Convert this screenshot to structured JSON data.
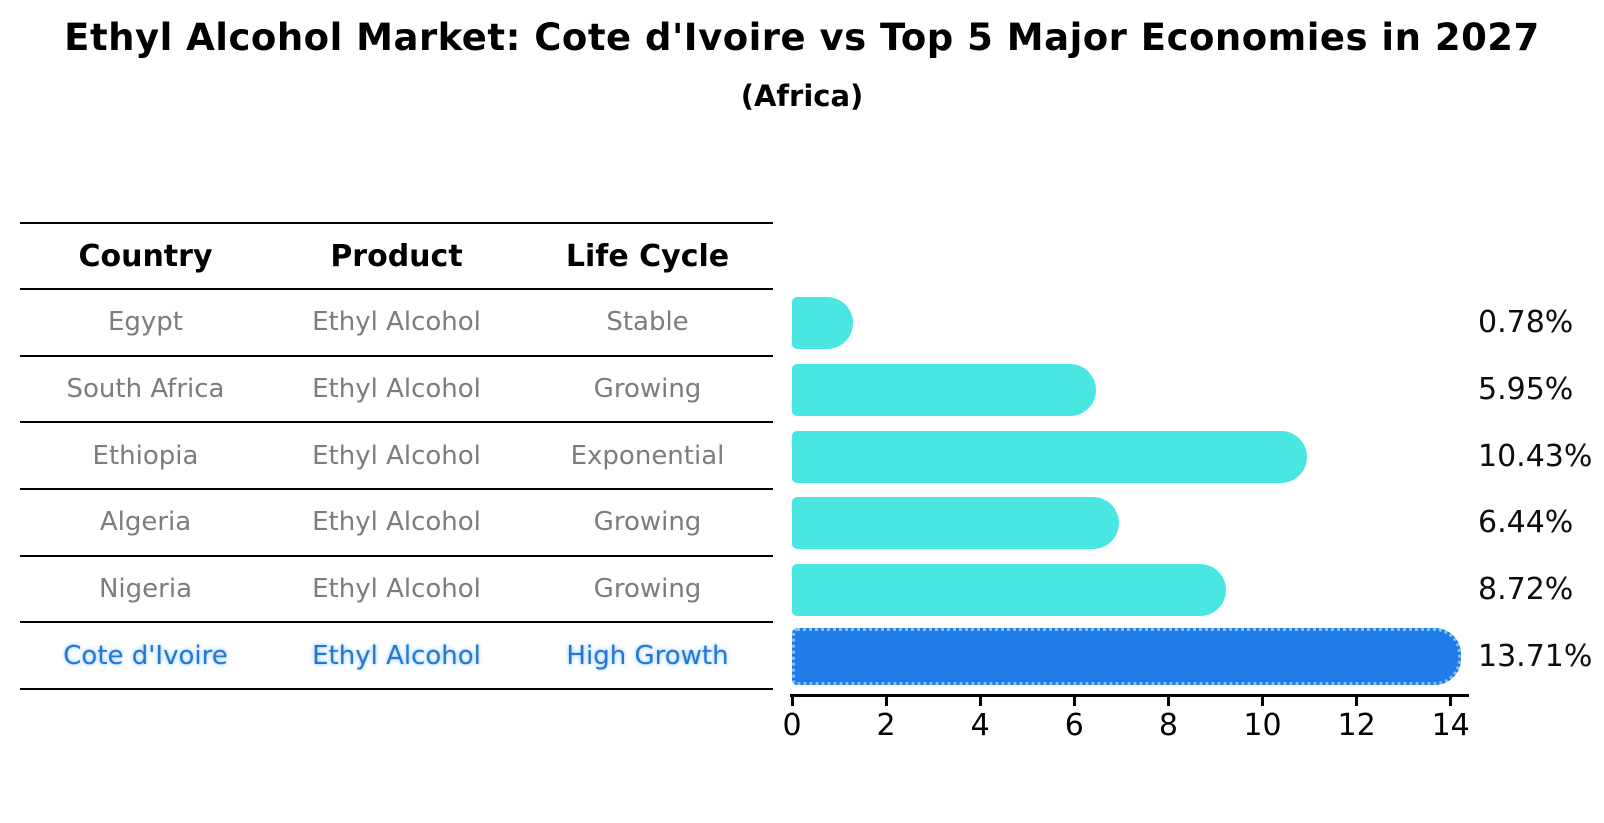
{
  "title": "Ethyl Alcohol Market: Cote d'Ivoire vs Top 5 Major Economies in 2027",
  "subtitle": "(Africa)",
  "table": {
    "headers": {
      "country": "Country",
      "product": "Product",
      "life_cycle": "Life Cycle"
    },
    "rows": [
      {
        "country": "Egypt",
        "product": "Ethyl Alcohol",
        "life_cycle": "Stable"
      },
      {
        "country": "South Africa",
        "product": "Ethyl Alcohol",
        "life_cycle": "Growing"
      },
      {
        "country": "Ethiopia",
        "product": "Ethyl Alcohol",
        "life_cycle": "Exponential"
      },
      {
        "country": "Algeria",
        "product": "Ethyl Alcohol",
        "life_cycle": "Growing"
      },
      {
        "country": "Nigeria",
        "product": "Ethyl Alcohol",
        "life_cycle": "Growing"
      },
      {
        "country": "Cote d'Ivoire",
        "product": "Ethyl Alcohol",
        "life_cycle": "High Growth"
      }
    ]
  },
  "chart_data": {
    "type": "bar",
    "orientation": "horizontal",
    "title": "Ethyl Alcohol Market: Cote d'Ivoire vs Top 5 Major Economies in 2027",
    "subtitle": "(Africa)",
    "categories": [
      "Egypt",
      "South Africa",
      "Ethiopia",
      "Algeria",
      "Nigeria",
      "Cote d'Ivoire"
    ],
    "values": [
      0.78,
      5.95,
      10.43,
      6.44,
      8.72,
      13.71
    ],
    "value_labels": [
      "0.78%",
      "5.95%",
      "10.43%",
      "6.44%",
      "8.72%",
      "13.71%"
    ],
    "highlight_index": 5,
    "xlabel": "",
    "ylabel": "",
    "xlim": [
      0,
      14.4
    ],
    "x_ticks": [
      0,
      2,
      4,
      6,
      8,
      10,
      12,
      14
    ],
    "grid": false,
    "legend": false
  },
  "colors": {
    "background": "#ffffff",
    "bar-default": "#4ae6e2",
    "bar-highlight": "#207ce6",
    "bar-highlight-border": "#85bff5",
    "highlight-text": "#2478d0",
    "muted-text": "#7d7d7d",
    "axis": "#000000"
  }
}
